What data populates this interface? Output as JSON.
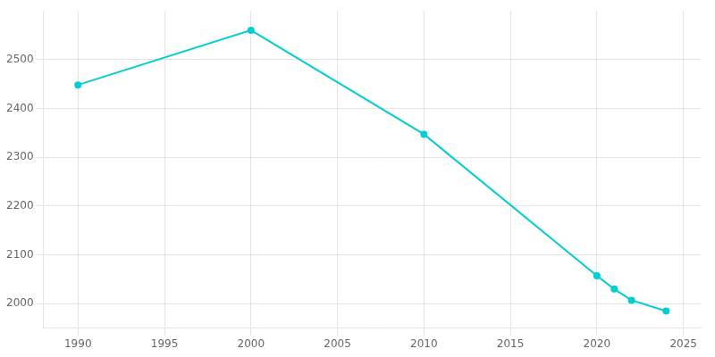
{
  "chart_data": {
    "type": "line",
    "x": [
      1990,
      2000,
      2010,
      2020,
      2021,
      2022,
      2024
    ],
    "values": [
      2448,
      2560,
      2347,
      2057,
      2030,
      2007,
      1985
    ],
    "color": "#00CED1",
    "marker": "circle",
    "xlim": [
      1988,
      2026
    ],
    "xticks": [
      1990,
      1995,
      2000,
      2005,
      2010,
      2015,
      2020,
      2025
    ],
    "ylim": [
      1950,
      2600
    ],
    "yticks": [
      2000,
      2100,
      2200,
      2300,
      2400,
      2500
    ],
    "grid": true
  }
}
